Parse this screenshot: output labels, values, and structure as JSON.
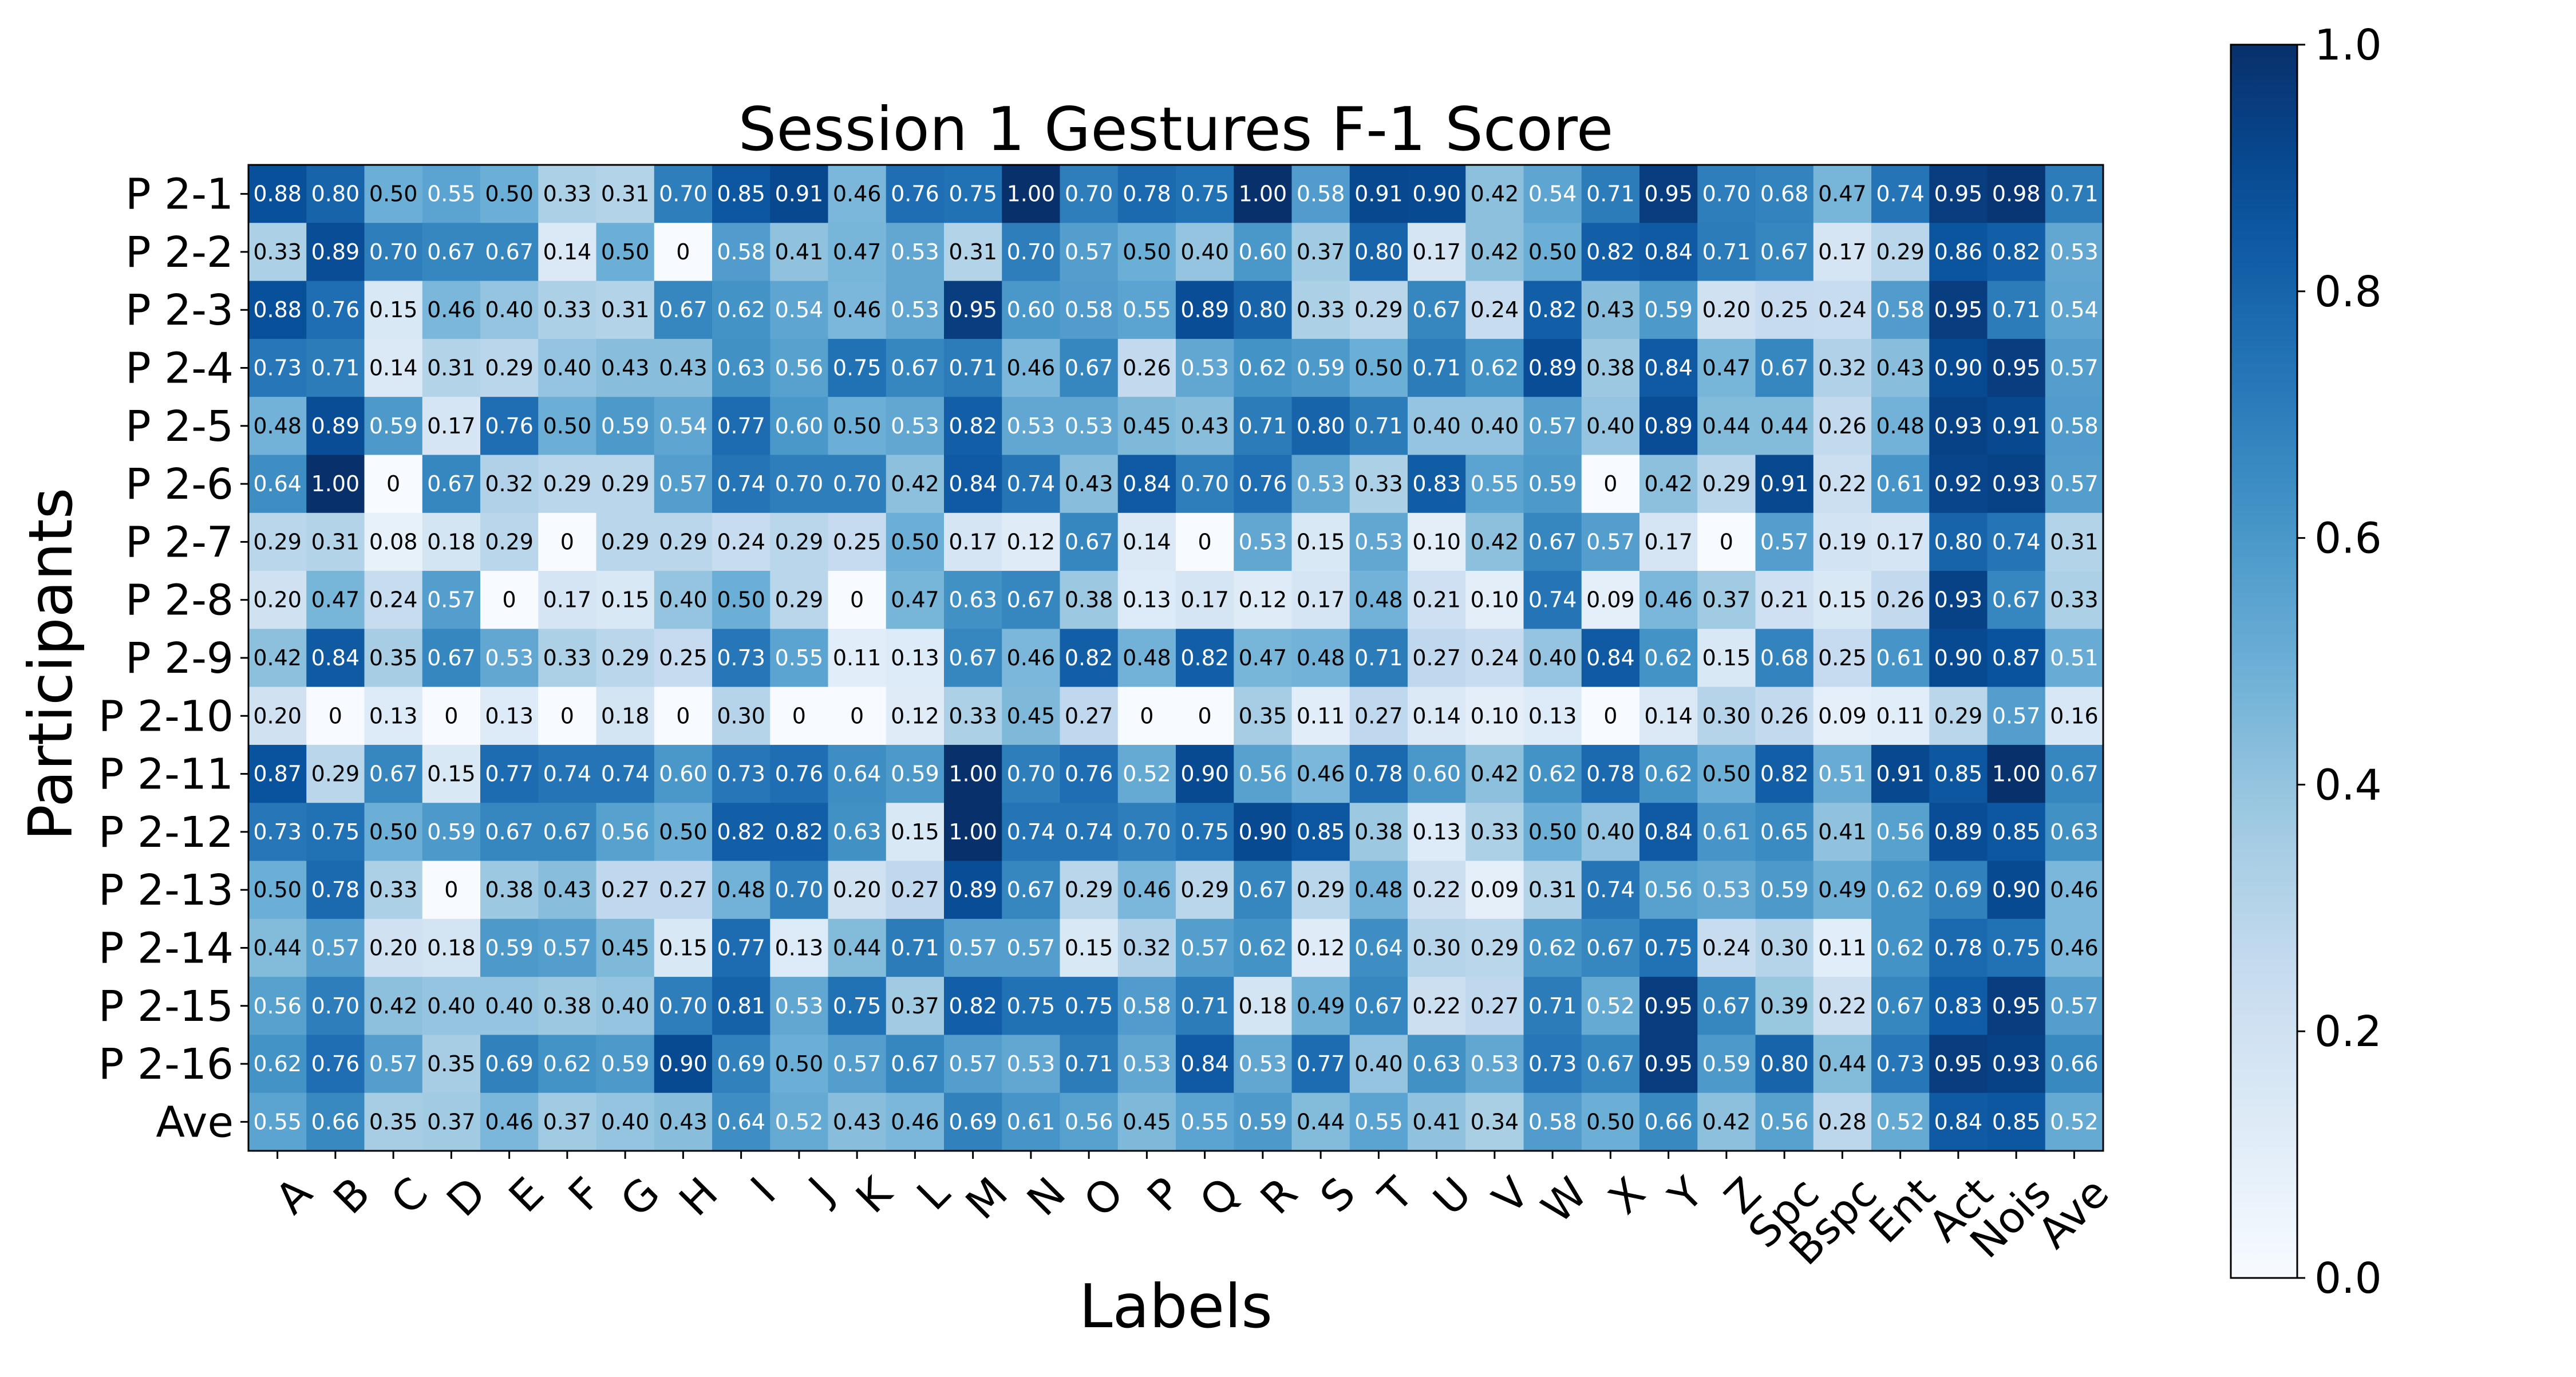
{
  "chart_data": {
    "type": "heatmap",
    "title": "Session 1 Gestures F-1 Score",
    "xlabel": "Labels",
    "ylabel": "Participants",
    "x_categories": [
      "A",
      "B",
      "C",
      "D",
      "E",
      "F",
      "G",
      "H",
      "I",
      "J",
      "K",
      "L",
      "M",
      "N",
      "O",
      "P",
      "Q",
      "R",
      "S",
      "T",
      "U",
      "V",
      "W",
      "X",
      "Y",
      "Z",
      "Spc",
      "Bspc",
      "Ent",
      "Act",
      "Nois",
      "Ave"
    ],
    "y_categories": [
      "P 2-1",
      "P 2-2",
      "P 2-3",
      "P 2-4",
      "P 2-5",
      "P 2-6",
      "P 2-7",
      "P 2-8",
      "P 2-9",
      "P 2-10",
      "P 2-11",
      "P 2-12",
      "P 2-13",
      "P 2-14",
      "P 2-15",
      "P 2-16",
      "Ave"
    ],
    "values": [
      [
        0.88,
        0.8,
        0.5,
        0.55,
        0.5,
        0.33,
        0.31,
        0.7,
        0.85,
        0.91,
        0.46,
        0.76,
        0.75,
        1.0,
        0.7,
        0.78,
        0.75,
        1.0,
        0.58,
        0.91,
        0.9,
        0.42,
        0.54,
        0.71,
        0.95,
        0.7,
        0.68,
        0.47,
        0.74,
        0.95,
        0.98,
        0.71
      ],
      [
        0.33,
        0.89,
        0.7,
        0.67,
        0.67,
        0.14,
        0.5,
        0,
        0.58,
        0.41,
        0.47,
        0.53,
        0.31,
        0.7,
        0.57,
        0.5,
        0.4,
        0.6,
        0.37,
        0.8,
        0.17,
        0.42,
        0.5,
        0.82,
        0.84,
        0.71,
        0.67,
        0.17,
        0.29,
        0.86,
        0.82,
        0.53
      ],
      [
        0.88,
        0.76,
        0.15,
        0.46,
        0.4,
        0.33,
        0.31,
        0.67,
        0.62,
        0.54,
        0.46,
        0.53,
        0.95,
        0.6,
        0.58,
        0.55,
        0.89,
        0.8,
        0.33,
        0.29,
        0.67,
        0.24,
        0.82,
        0.43,
        0.59,
        0.2,
        0.25,
        0.24,
        0.58,
        0.95,
        0.71,
        0.54
      ],
      [
        0.73,
        0.71,
        0.14,
        0.31,
        0.29,
        0.4,
        0.43,
        0.43,
        0.63,
        0.56,
        0.75,
        0.67,
        0.71,
        0.46,
        0.67,
        0.26,
        0.53,
        0.62,
        0.59,
        0.5,
        0.71,
        0.62,
        0.89,
        0.38,
        0.84,
        0.47,
        0.67,
        0.32,
        0.43,
        0.9,
        0.95,
        0.57
      ],
      [
        0.48,
        0.89,
        0.59,
        0.17,
        0.76,
        0.5,
        0.59,
        0.54,
        0.77,
        0.6,
        0.5,
        0.53,
        0.82,
        0.53,
        0.53,
        0.45,
        0.43,
        0.71,
        0.8,
        0.71,
        0.4,
        0.4,
        0.57,
        0.4,
        0.89,
        0.44,
        0.44,
        0.26,
        0.48,
        0.93,
        0.91,
        0.58
      ],
      [
        0.64,
        1.0,
        0,
        0.67,
        0.32,
        0.29,
        0.29,
        0.57,
        0.74,
        0.7,
        0.7,
        0.42,
        0.84,
        0.74,
        0.43,
        0.84,
        0.7,
        0.76,
        0.53,
        0.33,
        0.83,
        0.55,
        0.59,
        0,
        0.42,
        0.29,
        0.91,
        0.22,
        0.61,
        0.92,
        0.93,
        0.57
      ],
      [
        0.29,
        0.31,
        0.08,
        0.18,
        0.29,
        0,
        0.29,
        0.29,
        0.24,
        0.29,
        0.25,
        0.5,
        0.17,
        0.12,
        0.67,
        0.14,
        0,
        0.53,
        0.15,
        0.53,
        0.1,
        0.42,
        0.67,
        0.57,
        0.17,
        0,
        0.57,
        0.19,
        0.17,
        0.8,
        0.74,
        0.31
      ],
      [
        0.2,
        0.47,
        0.24,
        0.57,
        0,
        0.17,
        0.15,
        0.4,
        0.5,
        0.29,
        0,
        0.47,
        0.63,
        0.67,
        0.38,
        0.13,
        0.17,
        0.12,
        0.17,
        0.48,
        0.21,
        0.1,
        0.74,
        0.09,
        0.46,
        0.37,
        0.21,
        0.15,
        0.26,
        0.93,
        0.67,
        0.33
      ],
      [
        0.42,
        0.84,
        0.35,
        0.67,
        0.53,
        0.33,
        0.29,
        0.25,
        0.73,
        0.55,
        0.11,
        0.13,
        0.67,
        0.46,
        0.82,
        0.48,
        0.82,
        0.47,
        0.48,
        0.71,
        0.27,
        0.24,
        0.4,
        0.84,
        0.62,
        0.15,
        0.68,
        0.25,
        0.61,
        0.9,
        0.87,
        0.51
      ],
      [
        0.2,
        0,
        0.13,
        0,
        0.13,
        0,
        0.18,
        0,
        0.3,
        0,
        0,
        0.12,
        0.33,
        0.45,
        0.27,
        0,
        0,
        0.35,
        0.11,
        0.27,
        0.14,
        0.1,
        0.13,
        0,
        0.14,
        0.3,
        0.26,
        0.09,
        0.11,
        0.29,
        0.57,
        0.16
      ],
      [
        0.87,
        0.29,
        0.67,
        0.15,
        0.77,
        0.74,
        0.74,
        0.6,
        0.73,
        0.76,
        0.64,
        0.59,
        1.0,
        0.7,
        0.76,
        0.52,
        0.9,
        0.56,
        0.46,
        0.78,
        0.6,
        0.42,
        0.62,
        0.78,
        0.62,
        0.5,
        0.82,
        0.51,
        0.91,
        0.85,
        1.0,
        0.67
      ],
      [
        0.73,
        0.75,
        0.5,
        0.59,
        0.67,
        0.67,
        0.56,
        0.5,
        0.82,
        0.82,
        0.63,
        0.15,
        1.0,
        0.74,
        0.74,
        0.7,
        0.75,
        0.9,
        0.85,
        0.38,
        0.13,
        0.33,
        0.5,
        0.4,
        0.84,
        0.61,
        0.65,
        0.41,
        0.56,
        0.89,
        0.85,
        0.63
      ],
      [
        0.5,
        0.78,
        0.33,
        0,
        0.38,
        0.43,
        0.27,
        0.27,
        0.48,
        0.7,
        0.2,
        0.27,
        0.89,
        0.67,
        0.29,
        0.46,
        0.29,
        0.67,
        0.29,
        0.48,
        0.22,
        0.09,
        0.31,
        0.74,
        0.56,
        0.53,
        0.59,
        0.49,
        0.62,
        0.69,
        0.9,
        0.46
      ],
      [
        0.44,
        0.57,
        0.2,
        0.18,
        0.59,
        0.57,
        0.45,
        0.15,
        0.77,
        0.13,
        0.44,
        0.71,
        0.57,
        0.57,
        0.15,
        0.32,
        0.57,
        0.62,
        0.12,
        0.64,
        0.3,
        0.29,
        0.62,
        0.67,
        0.75,
        0.24,
        0.3,
        0.11,
        0.62,
        0.78,
        0.75,
        0.46
      ],
      [
        0.56,
        0.7,
        0.42,
        0.4,
        0.4,
        0.38,
        0.4,
        0.7,
        0.81,
        0.53,
        0.75,
        0.37,
        0.82,
        0.75,
        0.75,
        0.58,
        0.71,
        0.18,
        0.49,
        0.67,
        0.22,
        0.27,
        0.71,
        0.52,
        0.95,
        0.67,
        0.39,
        0.22,
        0.67,
        0.83,
        0.95,
        0.57
      ],
      [
        0.62,
        0.76,
        0.57,
        0.35,
        0.69,
        0.62,
        0.59,
        0.9,
        0.69,
        0.5,
        0.57,
        0.67,
        0.57,
        0.53,
        0.71,
        0.53,
        0.84,
        0.53,
        0.77,
        0.4,
        0.63,
        0.53,
        0.73,
        0.67,
        0.95,
        0.59,
        0.8,
        0.44,
        0.73,
        0.95,
        0.93,
        0.66
      ],
      [
        0.55,
        0.66,
        0.35,
        0.37,
        0.46,
        0.37,
        0.4,
        0.43,
        0.64,
        0.52,
        0.43,
        0.46,
        0.69,
        0.61,
        0.56,
        0.45,
        0.55,
        0.59,
        0.44,
        0.55,
        0.41,
        0.34,
        0.58,
        0.5,
        0.66,
        0.42,
        0.56,
        0.28,
        0.52,
        0.84,
        0.85,
        0.52
      ]
    ],
    "value_range": [
      0,
      1.0
    ],
    "colormap": "Blues",
    "colorbar_ticks": [
      "0.0",
      "0.2",
      "0.4",
      "0.6",
      "0.8",
      "1.0"
    ]
  }
}
